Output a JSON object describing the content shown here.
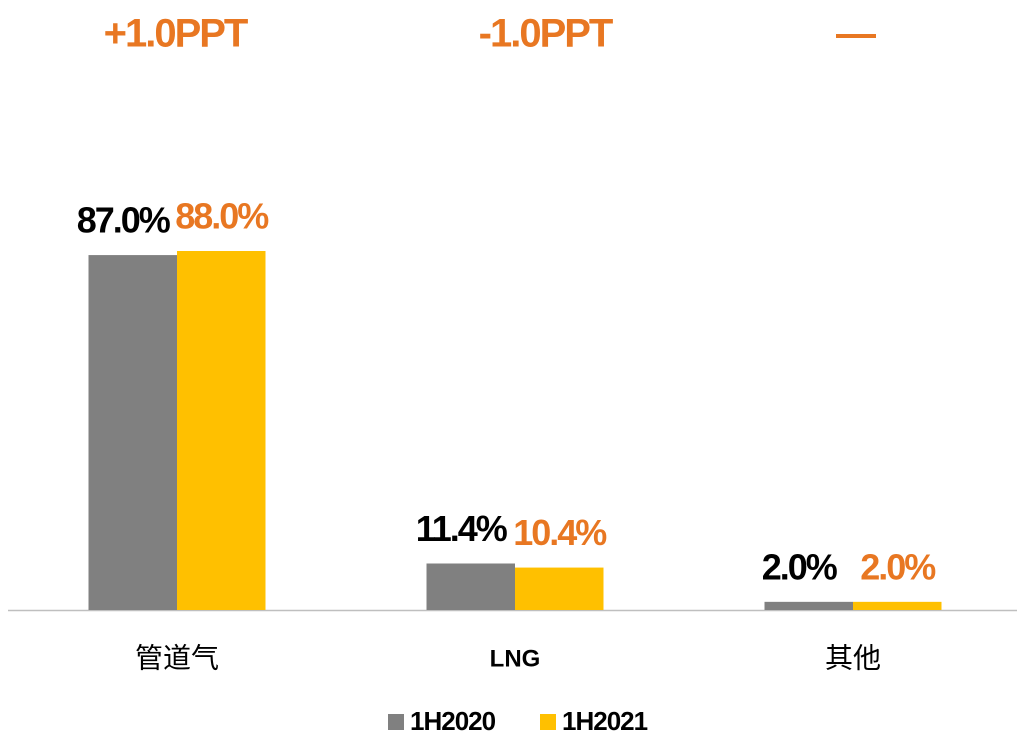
{
  "chart_data": {
    "type": "bar",
    "annotations": [
      "+1.0PPT",
      "-1.0PPT",
      "—"
    ],
    "categories": [
      "管道气",
      "LNG",
      "其他"
    ],
    "series": [
      {
        "name": "1H2020",
        "color": "#808080",
        "values": [
          87.0,
          11.4,
          2.0
        ],
        "value_labels": [
          "87.0%",
          "11.4%",
          "2.0%"
        ]
      },
      {
        "name": "1H2021",
        "color": "#FFC000",
        "values": [
          88.0,
          10.4,
          2.0
        ],
        "value_labels": [
          "88.0%",
          "10.4%",
          "2.0%"
        ]
      }
    ]
  }
}
